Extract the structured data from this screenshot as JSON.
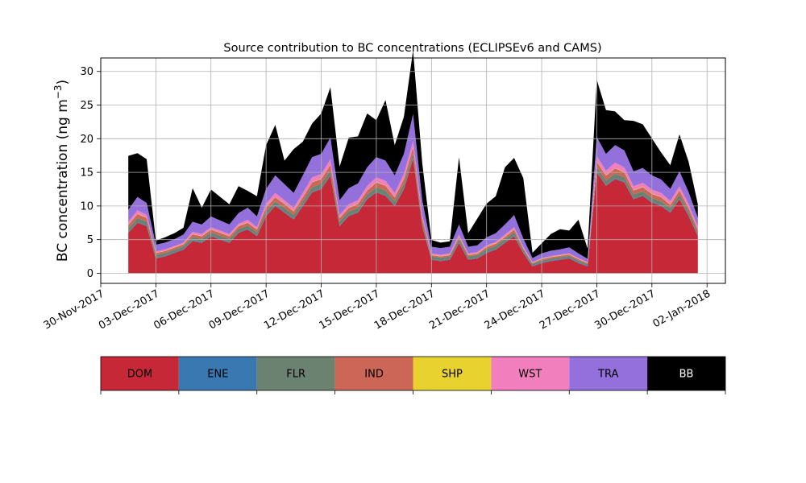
{
  "chart_data": {
    "type": "area",
    "stacked": true,
    "title": "Source contribution to BC concentrations (ECLIPSEv6 and CAMS)",
    "ylabel": "BC concentration (ng m",
    "ylabel_superscript": "−3",
    "ylabel_close": ")",
    "ylim": [
      -1.5,
      32
    ],
    "yticks": [
      0,
      5,
      10,
      15,
      20,
      25,
      30
    ],
    "xlim": [
      "2017-11-30T00:00",
      "2018-01-03T00:00"
    ],
    "xticks": [
      "30-Nov-2017",
      "03-Dec-2017",
      "06-Dec-2017",
      "09-Dec-2017",
      "12-Dec-2017",
      "15-Dec-2017",
      "18-Dec-2017",
      "21-Dec-2017",
      "24-Dec-2017",
      "27-Dec-2017",
      "30-Dec-2017",
      "02-Jan-2018"
    ],
    "xtick_dates": [
      "2017-11-30",
      "2017-12-03",
      "2017-12-06",
      "2017-12-09",
      "2017-12-12",
      "2017-12-15",
      "2017-12-18",
      "2017-12-21",
      "2017-12-24",
      "2017-12-27",
      "2017-12-30",
      "2018-01-02"
    ],
    "grid": true,
    "series_order": [
      "DOM",
      "ENE",
      "FLR",
      "IND",
      "SHP",
      "WST",
      "TRA",
      "BB"
    ],
    "colors": {
      "DOM": "#c62837",
      "ENE": "#3978b0",
      "FLR": "#6c8270",
      "IND": "#cc6656",
      "SHP": "#e8d230",
      "WST": "#f17fbd",
      "TRA": "#9370db",
      "BB": "#000000"
    },
    "legend": {
      "placement": "below",
      "entries": [
        {
          "label": "DOM",
          "color": "#c62837",
          "text_color": "#000000"
        },
        {
          "label": "ENE",
          "color": "#3978b0",
          "text_color": "#000000"
        },
        {
          "label": "FLR",
          "color": "#6c8270",
          "text_color": "#000000"
        },
        {
          "label": "IND",
          "color": "#cc6656",
          "text_color": "#000000"
        },
        {
          "label": "SHP",
          "color": "#e8d230",
          "text_color": "#000000"
        },
        {
          "label": "WST",
          "color": "#f17fbd",
          "text_color": "#000000"
        },
        {
          "label": "TRA",
          "color": "#9370db",
          "text_color": "#000000"
        },
        {
          "label": "BB",
          "color": "#000000",
          "text_color": "#ffffff"
        }
      ]
    },
    "x": [
      "2017-12-01T12:00",
      "2017-12-02T00:00",
      "2017-12-02T12:00",
      "2017-12-03T00:00",
      "2017-12-03T12:00",
      "2017-12-04T00:00",
      "2017-12-04T12:00",
      "2017-12-05T00:00",
      "2017-12-05T12:00",
      "2017-12-06T00:00",
      "2017-12-06T12:00",
      "2017-12-07T00:00",
      "2017-12-07T12:00",
      "2017-12-08T00:00",
      "2017-12-08T12:00",
      "2017-12-09T00:00",
      "2017-12-09T12:00",
      "2017-12-10T00:00",
      "2017-12-10T12:00",
      "2017-12-11T00:00",
      "2017-12-11T12:00",
      "2017-12-12T00:00",
      "2017-12-12T12:00",
      "2017-12-13T00:00",
      "2017-12-13T12:00",
      "2017-12-14T00:00",
      "2017-12-14T12:00",
      "2017-12-15T00:00",
      "2017-12-15T12:00",
      "2017-12-16T00:00",
      "2017-12-16T12:00",
      "2017-12-17T00:00",
      "2017-12-17T12:00",
      "2017-12-18T00:00",
      "2017-12-18T12:00",
      "2017-12-19T00:00",
      "2017-12-19T12:00",
      "2017-12-20T00:00",
      "2017-12-20T12:00",
      "2017-12-21T00:00",
      "2017-12-21T12:00",
      "2017-12-22T00:00",
      "2017-12-22T12:00",
      "2017-12-23T00:00",
      "2017-12-23T12:00",
      "2017-12-24T00:00",
      "2017-12-24T12:00",
      "2017-12-25T00:00",
      "2017-12-25T12:00",
      "2017-12-26T00:00",
      "2017-12-26T12:00",
      "2017-12-27T00:00",
      "2017-12-27T12:00",
      "2017-12-28T00:00",
      "2017-12-28T12:00",
      "2017-12-29T00:00",
      "2017-12-29T12:00",
      "2017-12-30T00:00",
      "2017-12-30T12:00",
      "2017-12-31T00:00",
      "2017-12-31T12:00",
      "2018-01-01T00:00",
      "2018-01-01T12:00"
    ],
    "series": [
      {
        "name": "DOM",
        "values": [
          6.0,
          7.5,
          7.0,
          2.2,
          2.5,
          3.0,
          3.5,
          4.8,
          4.5,
          5.5,
          5.0,
          4.5,
          6.0,
          6.5,
          5.5,
          8.5,
          10.0,
          9.0,
          8.0,
          10.0,
          12.0,
          12.5,
          14.5,
          7.0,
          8.5,
          9.0,
          11.0,
          12.0,
          11.5,
          10.0,
          12.5,
          17.0,
          7.0,
          2.0,
          1.8,
          2.0,
          4.5,
          2.0,
          2.2,
          3.0,
          3.5,
          4.5,
          5.5,
          3.0,
          1.0,
          1.5,
          1.8,
          2.0,
          2.2,
          1.5,
          1.0,
          15.0,
          13.0,
          14.0,
          13.5,
          11.0,
          11.5,
          10.5,
          10.0,
          9.0,
          11.0,
          8.5,
          5.5
        ]
      },
      {
        "name": "ENE",
        "values": [
          0.1,
          0.1,
          0.1,
          0.1,
          0.1,
          0.1,
          0.1,
          0.1,
          0.1,
          0.1,
          0.1,
          0.1,
          0.1,
          0.1,
          0.1,
          0.1,
          0.1,
          0.1,
          0.1,
          0.1,
          0.1,
          0.1,
          0.1,
          0.1,
          0.1,
          0.1,
          0.1,
          0.1,
          0.1,
          0.1,
          0.1,
          0.1,
          0.1,
          0.1,
          0.1,
          0.1,
          0.1,
          0.1,
          0.1,
          0.1,
          0.1,
          0.1,
          0.1,
          0.1,
          0.1,
          0.1,
          0.1,
          0.1,
          0.1,
          0.1,
          0.1,
          0.1,
          0.1,
          0.1,
          0.1,
          0.1,
          0.1,
          0.1,
          0.1,
          0.1,
          0.1,
          0.1,
          0.1
        ]
      },
      {
        "name": "FLR",
        "values": [
          0.6,
          0.6,
          0.6,
          0.4,
          0.4,
          0.4,
          0.4,
          0.5,
          0.5,
          0.5,
          0.5,
          0.5,
          0.5,
          0.5,
          0.5,
          0.6,
          0.6,
          0.6,
          0.6,
          0.6,
          0.7,
          0.7,
          0.7,
          0.6,
          0.6,
          0.6,
          0.6,
          0.7,
          0.7,
          0.6,
          0.7,
          0.7,
          0.6,
          0.4,
          0.4,
          0.4,
          0.5,
          0.4,
          0.4,
          0.5,
          0.5,
          0.5,
          0.5,
          0.4,
          0.3,
          0.3,
          0.3,
          0.3,
          0.3,
          0.3,
          0.3,
          0.7,
          0.7,
          0.7,
          0.7,
          0.6,
          0.6,
          0.6,
          0.6,
          0.6,
          0.6,
          0.6,
          0.5
        ]
      },
      {
        "name": "IND",
        "values": [
          0.5,
          0.6,
          0.5,
          0.3,
          0.3,
          0.3,
          0.3,
          0.4,
          0.4,
          0.4,
          0.4,
          0.4,
          0.4,
          0.4,
          0.4,
          0.6,
          0.6,
          0.6,
          0.5,
          0.6,
          0.7,
          0.7,
          0.8,
          0.5,
          0.5,
          0.6,
          0.6,
          0.7,
          0.7,
          0.6,
          0.7,
          0.9,
          0.5,
          0.2,
          0.2,
          0.2,
          0.3,
          0.2,
          0.2,
          0.3,
          0.3,
          0.3,
          0.4,
          0.2,
          0.1,
          0.2,
          0.2,
          0.2,
          0.2,
          0.2,
          0.1,
          0.8,
          0.7,
          0.8,
          0.7,
          0.6,
          0.6,
          0.6,
          0.6,
          0.5,
          0.6,
          0.5,
          0.4
        ]
      },
      {
        "name": "SHP",
        "values": [
          0.05,
          0.05,
          0.05,
          0.05,
          0.05,
          0.05,
          0.05,
          0.05,
          0.05,
          0.05,
          0.05,
          0.05,
          0.05,
          0.05,
          0.05,
          0.05,
          0.05,
          0.05,
          0.05,
          0.05,
          0.05,
          0.05,
          0.05,
          0.05,
          0.05,
          0.05,
          0.05,
          0.05,
          0.05,
          0.05,
          0.05,
          0.05,
          0.05,
          0.05,
          0.05,
          0.05,
          0.05,
          0.05,
          0.05,
          0.05,
          0.05,
          0.05,
          0.05,
          0.05,
          0.05,
          0.05,
          0.05,
          0.05,
          0.05,
          0.05,
          0.05,
          0.05,
          0.05,
          0.05,
          0.05,
          0.05,
          0.05,
          0.05,
          0.05,
          0.05,
          0.05,
          0.05,
          0.05
        ]
      },
      {
        "name": "WST",
        "values": [
          0.4,
          0.5,
          0.4,
          0.2,
          0.2,
          0.2,
          0.2,
          0.3,
          0.3,
          0.3,
          0.3,
          0.3,
          0.3,
          0.4,
          0.3,
          0.5,
          0.6,
          0.5,
          0.5,
          0.6,
          0.7,
          0.7,
          0.8,
          0.4,
          0.5,
          0.5,
          0.6,
          0.7,
          0.7,
          0.6,
          0.7,
          0.9,
          0.4,
          0.2,
          0.2,
          0.2,
          0.3,
          0.2,
          0.2,
          0.2,
          0.2,
          0.3,
          0.3,
          0.2,
          0.1,
          0.1,
          0.1,
          0.1,
          0.1,
          0.1,
          0.1,
          0.8,
          0.7,
          0.8,
          0.7,
          0.6,
          0.6,
          0.6,
          0.6,
          0.5,
          0.6,
          0.5,
          0.4
        ]
      },
      {
        "name": "TRA",
        "values": [
          1.8,
          2.0,
          1.8,
          1.0,
          1.0,
          1.0,
          1.2,
          1.5,
          1.4,
          1.6,
          1.5,
          1.4,
          1.6,
          1.8,
          1.6,
          2.2,
          2.6,
          2.4,
          2.2,
          2.6,
          3.0,
          3.0,
          3.2,
          2.2,
          2.4,
          2.5,
          2.8,
          3.0,
          3.0,
          2.6,
          3.0,
          4.0,
          2.2,
          1.0,
          1.0,
          1.0,
          1.5,
          1.0,
          1.0,
          1.2,
          1.3,
          1.5,
          1.8,
          1.2,
          0.6,
          0.7,
          0.8,
          0.8,
          0.9,
          0.7,
          0.5,
          2.8,
          2.5,
          2.6,
          2.5,
          2.2,
          2.2,
          2.1,
          2.0,
          1.8,
          2.2,
          1.8,
          1.3
        ]
      },
      {
        "name": "BB",
        "values": [
          8.0,
          6.5,
          6.5,
          0.6,
          0.8,
          0.9,
          1.0,
          5.0,
          2.5,
          4.0,
          3.5,
          3.0,
          4.0,
          2.5,
          3.0,
          6.5,
          7.5,
          3.5,
          6.5,
          5.0,
          5.0,
          6.0,
          7.5,
          5.0,
          7.5,
          7.0,
          8.0,
          5.5,
          9.0,
          4.5,
          5.5,
          9.5,
          5.5,
          1.0,
          0.8,
          0.8,
          10.0,
          2.0,
          4.0,
          5.0,
          5.5,
          8.5,
          8.5,
          9.0,
          0.8,
          1.5,
          2.5,
          3.0,
          2.5,
          5.0,
          1.5,
          8.5,
          6.5,
          5.0,
          4.5,
          7.5,
          6.5,
          5.5,
          4.0,
          3.5,
          5.5,
          4.5,
          2.0
        ]
      }
    ]
  }
}
